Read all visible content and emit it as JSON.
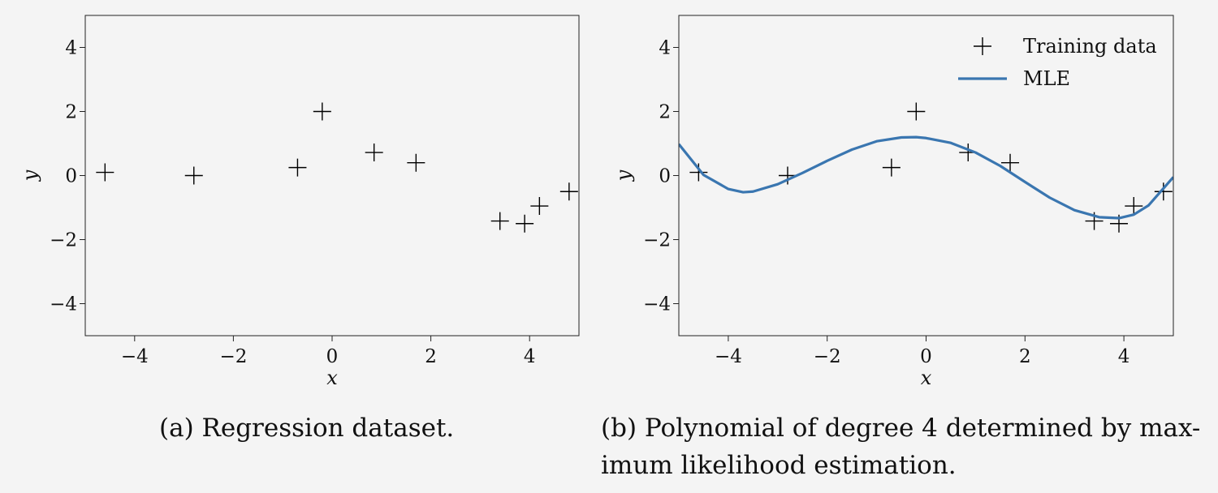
{
  "chart_data": [
    {
      "type": "scatter",
      "caption": "(a) Regression dataset.",
      "xlabel": "x",
      "ylabel": "y",
      "xlim": [
        -5,
        5
      ],
      "ylim": [
        -5,
        5
      ],
      "xticks": [
        -4,
        -2,
        0,
        2,
        4
      ],
      "yticks": [
        -4,
        -2,
        0,
        2,
        4
      ],
      "grid": false,
      "series": [
        {
          "marker": "+",
          "color": "#000000",
          "x": [
            -4.6,
            -2.8,
            -0.7,
            -0.2,
            0.85,
            1.7,
            3.4,
            3.9,
            4.2,
            4.8
          ],
          "y": [
            0.1,
            0.0,
            0.25,
            2.0,
            0.72,
            0.4,
            -1.42,
            -1.5,
            -0.95,
            -0.5
          ]
        }
      ]
    },
    {
      "type": "line",
      "caption_line1": "(b) Polynomial of degree 4 determined by max-",
      "caption_line2": "imum likelihood estimation.",
      "xlabel": "x",
      "ylabel": "y",
      "xlim": [
        -5,
        5
      ],
      "ylim": [
        -5,
        5
      ],
      "xticks": [
        -4,
        -2,
        0,
        2,
        4
      ],
      "yticks": [
        -4,
        -2,
        0,
        2,
        4
      ],
      "grid": false,
      "legend_position": "top-right",
      "series": [
        {
          "name": "Training data",
          "marker": "+",
          "color": "#000000",
          "x": [
            -4.6,
            -2.8,
            -0.7,
            -0.2,
            0.85,
            1.7,
            3.4,
            3.9,
            4.2,
            4.8
          ],
          "y": [
            0.1,
            0.0,
            0.25,
            2.0,
            0.72,
            0.4,
            -1.42,
            -1.5,
            -0.95,
            -0.5
          ]
        },
        {
          "name": "MLE",
          "color": "#3a76b0",
          "x": [
            -5,
            -4.5,
            -4,
            -3.7,
            -3.5,
            -3,
            -2.5,
            -2,
            -1.5,
            -1,
            -0.5,
            -0.2,
            0,
            0.5,
            1,
            1.5,
            2,
            2.5,
            3,
            3.5,
            3.9,
            4.2,
            4.5,
            5
          ],
          "y": [
            0.98,
            0.02,
            -0.42,
            -0.52,
            -0.5,
            -0.27,
            0.08,
            0.46,
            0.81,
            1.07,
            1.19,
            1.2,
            1.17,
            1.02,
            0.72,
            0.3,
            -0.2,
            -0.69,
            -1.08,
            -1.3,
            -1.33,
            -1.22,
            -0.93,
            -0.05
          ]
        }
      ]
    }
  ]
}
